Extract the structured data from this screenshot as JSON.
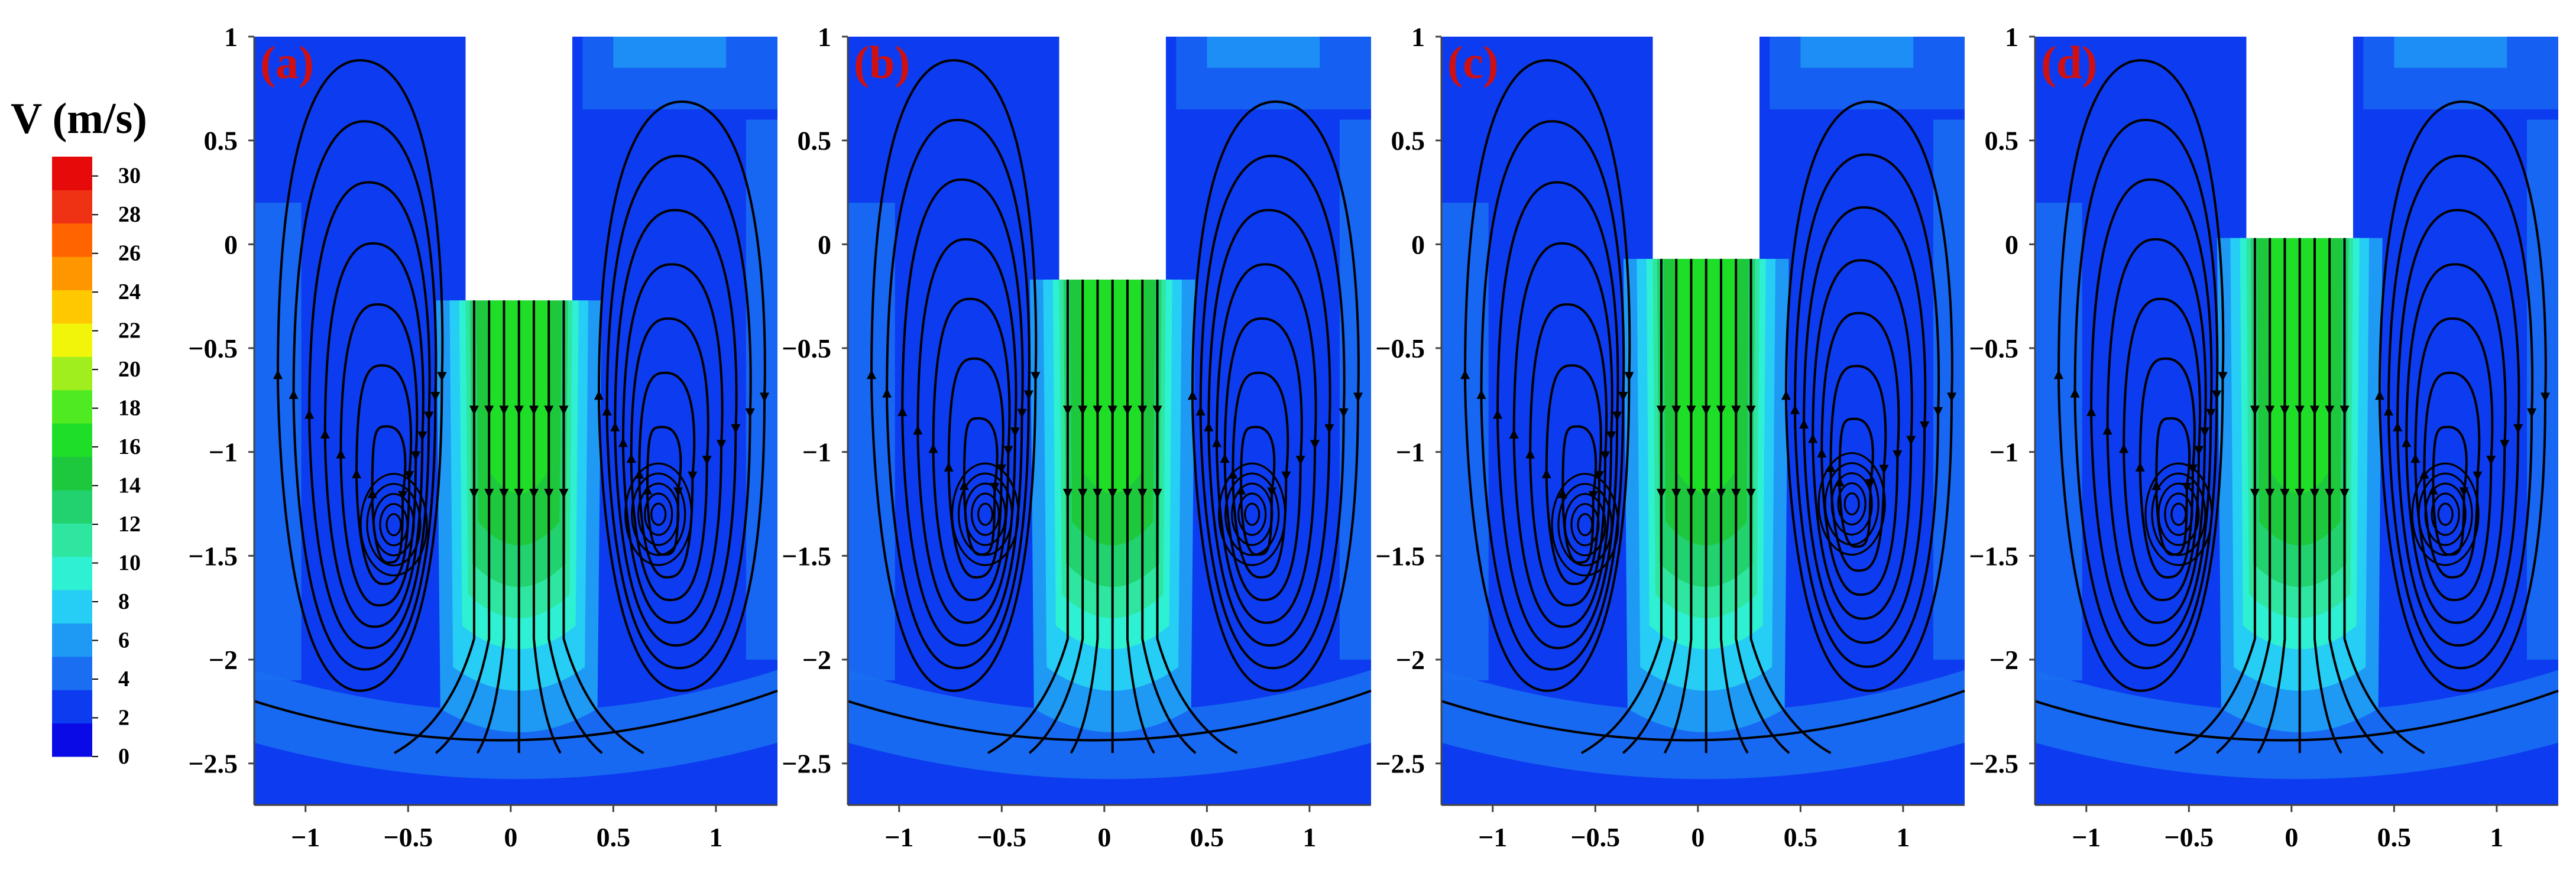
{
  "colorbar": {
    "title": "V (m/s)",
    "min": 0,
    "max": 31,
    "tick_labels": [
      "30",
      "28",
      "26",
      "24",
      "22",
      "20",
      "18",
      "16",
      "14",
      "12",
      "10",
      "8",
      "6",
      "4",
      "2",
      "0"
    ],
    "colors": [
      "#0a0ae6",
      "#0d3cf0",
      "#1a6ef2",
      "#1e9af5",
      "#26cdf5",
      "#2ef0d2",
      "#2ee6a0",
      "#22d26e",
      "#1ec83c",
      "#1ede28",
      "#50ea22",
      "#a0ee1e",
      "#f0f50a",
      "#ffc800",
      "#ff9600",
      "#ff6400",
      "#f03214",
      "#e60a0a"
    ]
  },
  "chart_data": [
    {
      "type": "heatmap",
      "title": "(a)",
      "xlim": [
        -1.25,
        1.3
      ],
      "ylim": [
        -2.7,
        1.0
      ],
      "xticks": [
        "-1",
        "-0.5",
        "0",
        "0.5",
        "1"
      ],
      "yticks": [
        "1",
        "0.5",
        "0",
        "-0.5",
        "-1",
        "-1.5",
        "-2",
        "-2.5"
      ],
      "obstacle": {
        "x": [
          -0.22,
          0.3
        ],
        "y_bottom": -0.27
      },
      "jet_speed_max": 20,
      "vortices": [
        {
          "x": -0.57,
          "y": -1.35
        },
        {
          "x": 0.72,
          "y": -1.3
        }
      ]
    },
    {
      "type": "heatmap",
      "title": "(b)",
      "xlim": [
        -1.25,
        1.3
      ],
      "ylim": [
        -2.7,
        1.0
      ],
      "xticks": [
        "-1",
        "-0.5",
        "0",
        "0.5",
        "1"
      ],
      "yticks": [
        "1",
        "0.5",
        "0",
        "-0.5",
        "-1",
        "-1.5",
        "-2",
        "-2.5"
      ],
      "obstacle": {
        "x": [
          -0.22,
          0.3
        ],
        "y_bottom": -0.17
      },
      "jet_speed_max": 20,
      "vortices": [
        {
          "x": -0.58,
          "y": -1.3
        },
        {
          "x": 0.72,
          "y": -1.3
        }
      ]
    },
    {
      "type": "heatmap",
      "title": "(c)",
      "xlim": [
        -1.25,
        1.3
      ],
      "ylim": [
        -2.7,
        1.0
      ],
      "xticks": [
        "-1",
        "-0.5",
        "0",
        "0.5",
        "1"
      ],
      "yticks": [
        "1",
        "0.5",
        "0",
        "-0.5",
        "-1",
        "-1.5",
        "-2",
        "-2.5"
      ],
      "obstacle": {
        "x": [
          -0.22,
          0.3
        ],
        "y_bottom": -0.07
      },
      "jet_speed_max": 20,
      "vortices": [
        {
          "x": -0.55,
          "y": -1.35
        },
        {
          "x": 0.75,
          "y": -1.25
        }
      ]
    },
    {
      "type": "heatmap",
      "title": "(d)",
      "xlim": [
        -1.25,
        1.3
      ],
      "ylim": [
        -2.7,
        1.0
      ],
      "xticks": [
        "-1",
        "-0.5",
        "0",
        "0.5",
        "1"
      ],
      "yticks": [
        "1",
        "0.5",
        "0",
        "-0.5",
        "-1",
        "-1.5",
        "-2",
        "-2.5"
      ],
      "obstacle": {
        "x": [
          -0.22,
          0.3
        ],
        "y_bottom": 0.03
      },
      "jet_speed_max": 20,
      "vortices": [
        {
          "x": -0.55,
          "y": -1.3
        },
        {
          "x": 0.75,
          "y": -1.3
        }
      ]
    }
  ]
}
